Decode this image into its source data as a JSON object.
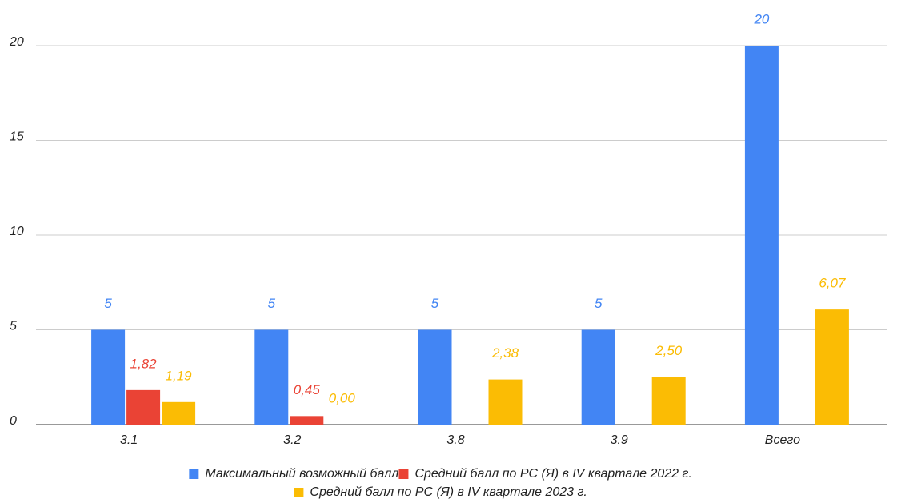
{
  "chart_data": {
    "type": "bar",
    "categories": [
      "3.1",
      "3.2",
      "3.8",
      "3.9",
      "Всего"
    ],
    "series": [
      {
        "name": "Максимальный возможный балл",
        "color": "#4285f4",
        "values": [
          5,
          5,
          5,
          5,
          20
        ]
      },
      {
        "name": "Средний балл по РС (Я) в IV квартале 2022 г.",
        "color": "#ea4335",
        "values": [
          1.82,
          0.45,
          null,
          null,
          null
        ],
        "value_labels": [
          "1,82",
          "0,45",
          null,
          null,
          null
        ]
      },
      {
        "name": "Средний балл по РС (Я) в IV квартале 2023 г.",
        "color": "#fbbc04",
        "values": [
          1.19,
          0.0,
          2.38,
          2.5,
          6.07
        ],
        "value_labels": [
          "1,19",
          "0,00",
          "2,38",
          "2,50",
          "6,07"
        ]
      }
    ],
    "ylim": [
      0,
      20
    ],
    "yticks": [
      0,
      5,
      10,
      15,
      20
    ],
    "grid": true,
    "legend": "bottom"
  }
}
